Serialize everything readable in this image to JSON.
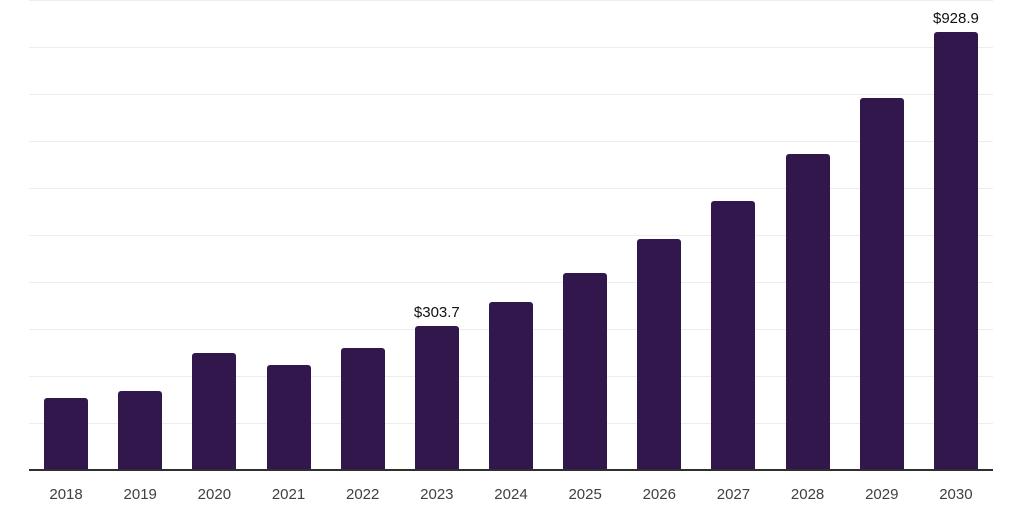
{
  "chart": {
    "background_color": "#ffffff",
    "bar_color": "#32174d",
    "grid_color": "#ededed",
    "axis_color": "#2e2e2e",
    "tick_label_color": "#404040",
    "data_label_color": "#111111"
  },
  "chart_data": {
    "type": "bar",
    "title": "",
    "xlabel": "",
    "ylabel": "",
    "categories": [
      "2018",
      "2019",
      "2020",
      "2021",
      "2022",
      "2023",
      "2024",
      "2025",
      "2026",
      "2027",
      "2028",
      "2029",
      "2030"
    ],
    "values": [
      152,
      165,
      247,
      222,
      258,
      303.7,
      355,
      416,
      489,
      571,
      671,
      790,
      928.9
    ],
    "data_labels": [
      "",
      "",
      "",
      "",
      "",
      "$303.7",
      "",
      "",
      "",
      "",
      "",
      "",
      "$928.9"
    ],
    "ylim": [
      0,
      1000
    ],
    "ytick_step": 100,
    "grid": "horizontal",
    "y_axis_labels_visible": false,
    "legend_position": "none",
    "x_axis_line": true
  }
}
